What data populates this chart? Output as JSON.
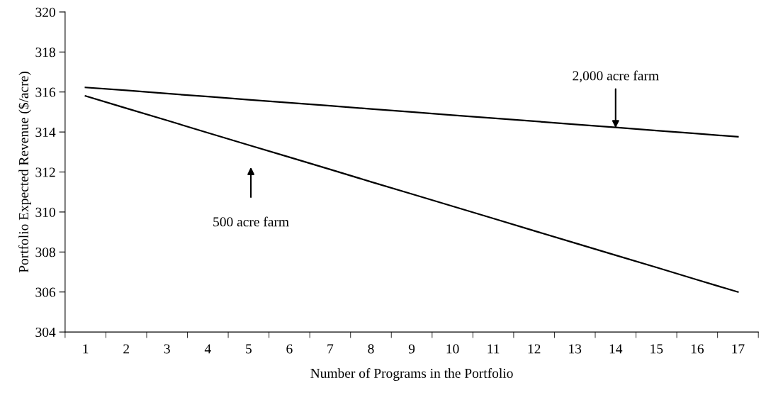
{
  "chart_data": {
    "type": "line",
    "xlabel": "Number of Programs in the Portfolio",
    "ylabel": "Portfolio Expected Revenue ($/acre)",
    "categories": [
      "1",
      "2",
      "3",
      "4",
      "5",
      "6",
      "7",
      "8",
      "9",
      "10",
      "11",
      "12",
      "13",
      "14",
      "15",
      "16",
      "17"
    ],
    "series": [
      {
        "color": "#000000",
        "values": [
          316.23,
          316.08,
          315.92,
          315.77,
          315.61,
          315.46,
          315.31,
          315.15,
          315.0,
          314.84,
          314.69,
          314.54,
          314.38,
          314.23,
          314.07,
          313.92,
          313.76
        ]
      },
      {
        "color": "#000000",
        "values": [
          315.8,
          315.19,
          314.58,
          313.96,
          313.35,
          312.74,
          312.13,
          311.51,
          310.9,
          310.29,
          309.68,
          309.06,
          308.45,
          307.84,
          307.23,
          306.61,
          306.0
        ]
      }
    ],
    "ylim": [
      304,
      320
    ],
    "yticks": [
      304,
      306,
      308,
      310,
      312,
      314,
      316,
      318,
      320
    ],
    "grid": false,
    "marker": "none",
    "line_style": "solid",
    "annotations": [
      {
        "text": "2,000 acre farm",
        "x": "14",
        "y": 314.2
      },
      "500 acre farm"
    ]
  }
}
